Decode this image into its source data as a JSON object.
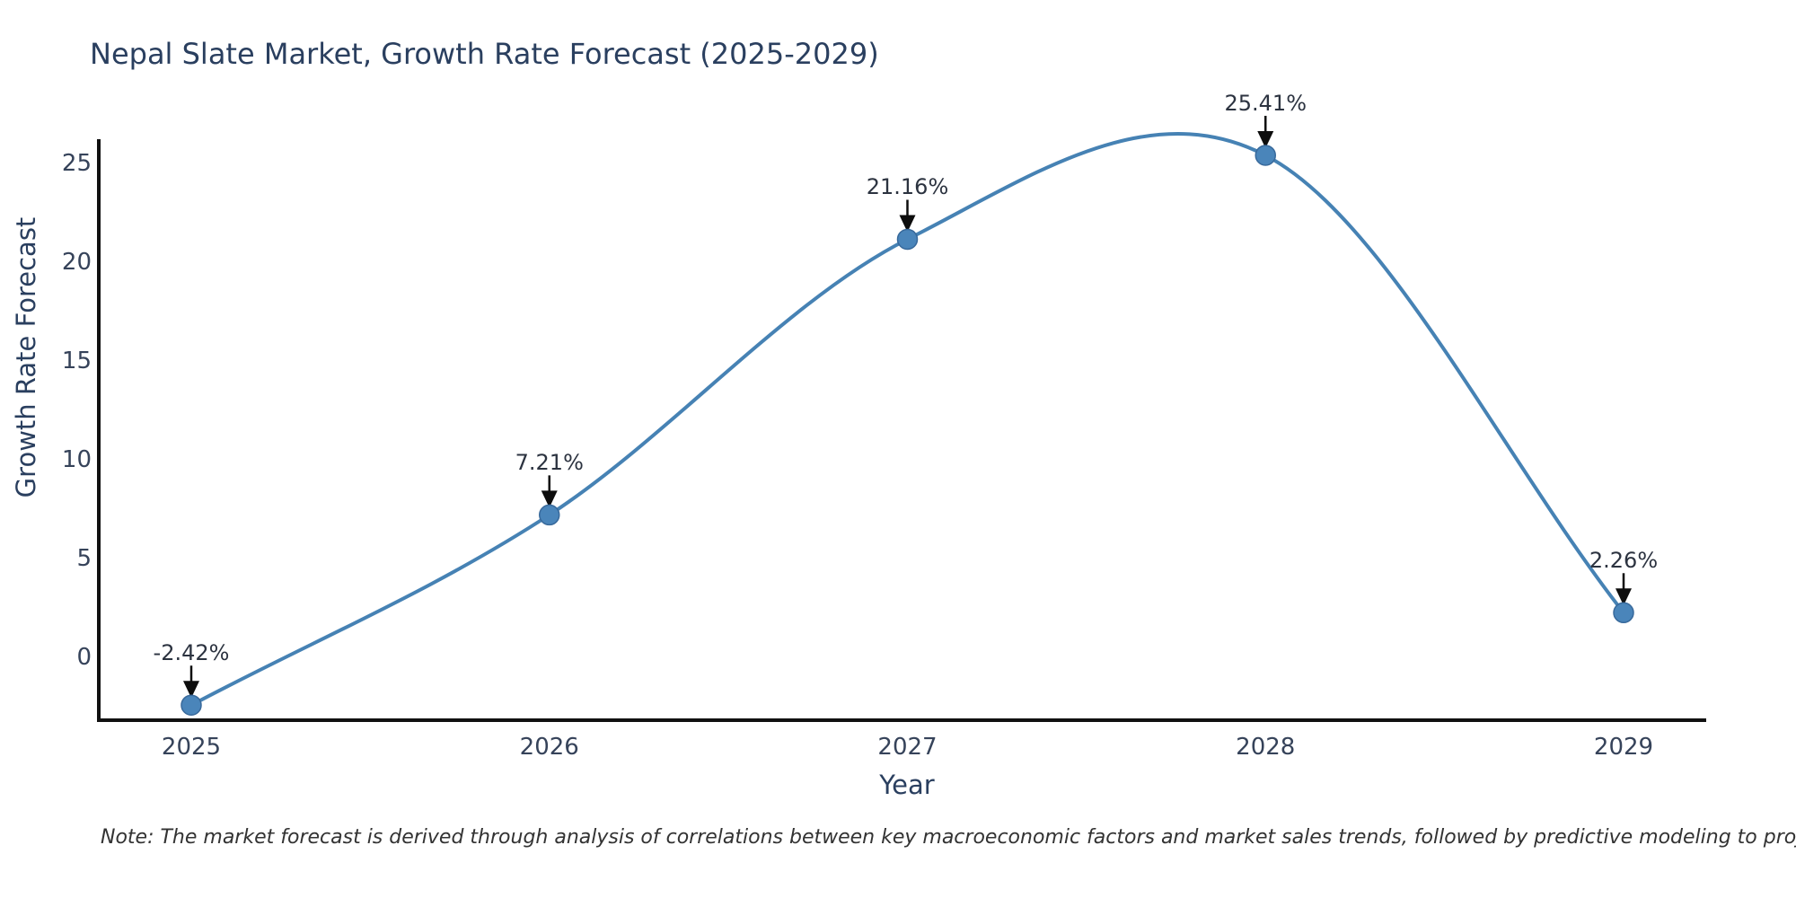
{
  "title": "Nepal Slate Market, Growth Rate Forecast (2025-2029)",
  "note": "Note: The market forecast is derived through analysis of correlations between key macroeconomic factors and market sales trends, followed by predictive modeling to project future sales",
  "chart_data": {
    "type": "line",
    "title": "Nepal Slate Market, Growth Rate Forecast (2025-2029)",
    "xlabel": "Year",
    "ylabel": "Growth Rate Forecast",
    "x": [
      2025,
      2026,
      2027,
      2028,
      2029
    ],
    "series": [
      {
        "name": "Growth Rate Forecast",
        "values": [
          -2.42,
          7.21,
          21.16,
          25.41,
          2.26
        ]
      }
    ],
    "point_labels": [
      "-2.42%",
      "7.21%",
      "21.16%",
      "25.41%",
      "2.26%"
    ],
    "yticks": [
      0,
      5,
      10,
      15,
      20,
      25
    ],
    "ylim": [
      -3.2,
      26.2
    ],
    "xlim": [
      2024.74,
      2029.23
    ],
    "grid": false,
    "legend": "none",
    "smoothing": "cubic-spline",
    "annotations": "value labels with downward arrows at each data point",
    "colors": {
      "line": "#4682b4",
      "marker": "#4a85ba",
      "marker_edge": "#38699b",
      "axis": "#111111",
      "arrow": "#0d0d0d",
      "title_text": "#2a3f5f",
      "tick_text": "#36435a",
      "annotation_text": "#2c3340",
      "note_text": "#333333"
    }
  }
}
